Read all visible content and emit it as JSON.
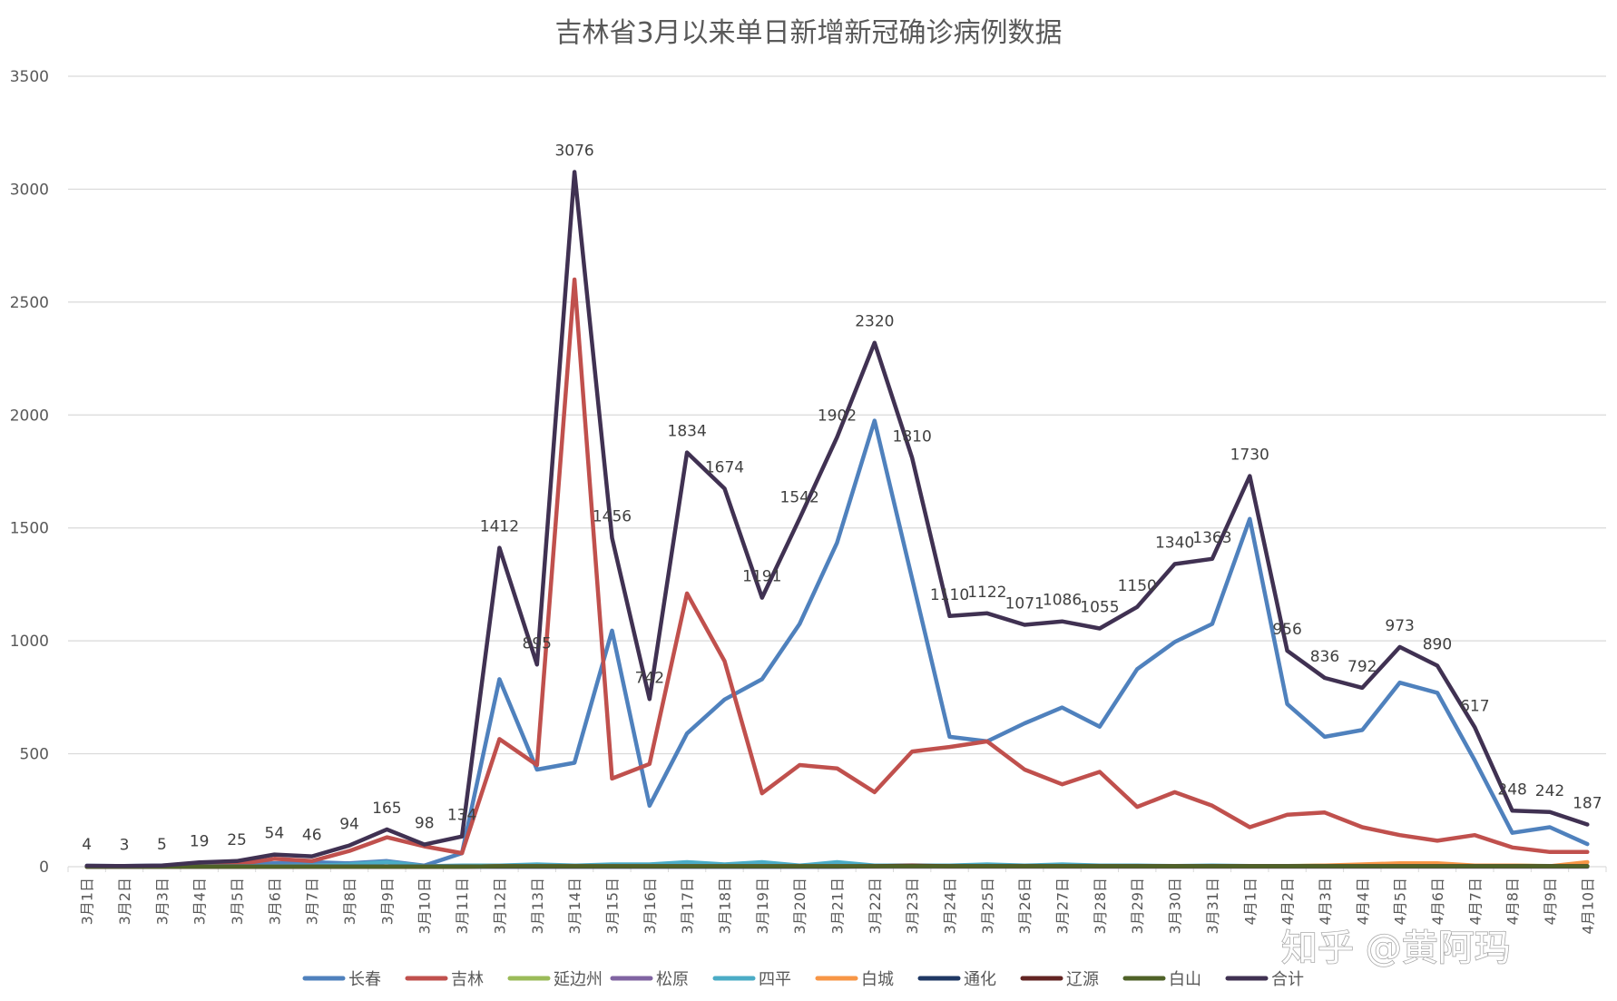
{
  "watermark": "知乎 @黄阿玛",
  "chart_data": {
    "type": "line",
    "title": "吉林省3月以来单日新增新冠确诊病例数据",
    "xlabel": "",
    "ylabel": "",
    "ylim": [
      0,
      3500
    ],
    "yticks": [
      0,
      500,
      1000,
      1500,
      2000,
      2500,
      3000,
      3500
    ],
    "grid": true,
    "legend_position": "bottom",
    "categories": [
      "3月1日",
      "3月2日",
      "3月3日",
      "3月4日",
      "3月5日",
      "3月6日",
      "3月7日",
      "3月8日",
      "3月9日",
      "3月10日",
      "3月11日",
      "3月12日",
      "3月13日",
      "3月14日",
      "3月15日",
      "3月16日",
      "3月17日",
      "3月18日",
      "3月19日",
      "3月20日",
      "3月21日",
      "3月22日",
      "3月23日",
      "3月24日",
      "3月25日",
      "3月26日",
      "3月27日",
      "3月28日",
      "3月29日",
      "3月30日",
      "3月31日",
      "4月1日",
      "4月2日",
      "4月3日",
      "4月4日",
      "4月5日",
      "4月6日",
      "4月7日",
      "4月8日",
      "4月9日",
      "4月10日"
    ],
    "series": [
      {
        "name": "长春",
        "color": "#4f81bd",
        "values": [
          4,
          3,
          5,
          10,
          12,
          15,
          20,
          15,
          25,
          5,
          60,
          830,
          430,
          460,
          1045,
          270,
          590,
          740,
          830,
          1075,
          1435,
          1975,
          1275,
          575,
          555,
          635,
          705,
          620,
          875,
          995,
          1075,
          1540,
          720,
          575,
          605,
          815,
          770,
          470,
          150,
          175,
          100
        ]
      },
      {
        "name": "吉林",
        "color": "#c0504d",
        "values": [
          0,
          0,
          0,
          5,
          10,
          35,
          25,
          70,
          130,
          90,
          60,
          565,
          450,
          2600,
          390,
          455,
          1210,
          910,
          325,
          450,
          435,
          330,
          510,
          530,
          555,
          430,
          365,
          420,
          265,
          330,
          270,
          175,
          230,
          240,
          175,
          140,
          115,
          140,
          85,
          65,
          65
        ]
      },
      {
        "name": "延边州",
        "color": "#9bbb59",
        "values": [
          0,
          0,
          0,
          0,
          0,
          0,
          0,
          0,
          0,
          0,
          0,
          5,
          2,
          2,
          2,
          3,
          2,
          2,
          2,
          2,
          2,
          5,
          5,
          2,
          2,
          2,
          2,
          2,
          3,
          3,
          3,
          2,
          3,
          5,
          5,
          5,
          5,
          3,
          5,
          3,
          3
        ]
      },
      {
        "name": "松原",
        "color": "#8064a2",
        "values": [
          0,
          0,
          0,
          0,
          0,
          0,
          0,
          0,
          0,
          0,
          0,
          0,
          0,
          0,
          0,
          0,
          0,
          0,
          0,
          0,
          0,
          0,
          0,
          0,
          0,
          0,
          0,
          0,
          0,
          0,
          0,
          0,
          0,
          0,
          0,
          0,
          0,
          0,
          0,
          0,
          0
        ]
      },
      {
        "name": "四平",
        "color": "#4bacc6",
        "values": [
          0,
          0,
          0,
          2,
          2,
          3,
          5,
          10,
          20,
          2,
          5,
          5,
          10,
          5,
          10,
          10,
          20,
          10,
          20,
          5,
          20,
          5,
          5,
          5,
          10,
          5,
          10,
          5,
          5,
          3,
          5,
          3,
          3,
          3,
          3,
          3,
          3,
          3,
          3,
          2,
          2
        ]
      },
      {
        "name": "白城",
        "color": "#f79646",
        "values": [
          0,
          0,
          0,
          0,
          0,
          0,
          0,
          0,
          0,
          0,
          0,
          2,
          2,
          2,
          2,
          2,
          2,
          2,
          2,
          2,
          2,
          2,
          2,
          2,
          2,
          2,
          2,
          2,
          2,
          2,
          2,
          2,
          2,
          5,
          10,
          15,
          15,
          5,
          5,
          2,
          20
        ]
      },
      {
        "name": "通化",
        "color": "#1f3864",
        "values": [
          0,
          0,
          0,
          0,
          0,
          0,
          0,
          0,
          0,
          0,
          0,
          0,
          0,
          0,
          0,
          0,
          0,
          0,
          0,
          0,
          0,
          2,
          2,
          2,
          2,
          2,
          2,
          2,
          2,
          2,
          2,
          2,
          2,
          2,
          2,
          2,
          2,
          2,
          2,
          2,
          2
        ]
      },
      {
        "name": "辽源",
        "color": "#632523",
        "values": [
          0,
          0,
          0,
          0,
          0,
          0,
          0,
          0,
          0,
          0,
          0,
          2,
          2,
          2,
          2,
          2,
          2,
          2,
          2,
          2,
          2,
          2,
          5,
          2,
          2,
          2,
          2,
          2,
          2,
          2,
          2,
          2,
          2,
          2,
          2,
          2,
          2,
          2,
          2,
          2,
          2
        ]
      },
      {
        "name": "白山",
        "color": "#4f6228",
        "values": [
          0,
          0,
          0,
          0,
          0,
          0,
          0,
          0,
          0,
          0,
          0,
          2,
          2,
          2,
          2,
          2,
          2,
          2,
          2,
          2,
          2,
          2,
          2,
          2,
          2,
          2,
          2,
          2,
          2,
          2,
          2,
          2,
          2,
          2,
          2,
          2,
          2,
          2,
          2,
          2,
          2
        ]
      },
      {
        "name": "合计",
        "color": "#403152",
        "values": [
          4,
          3,
          5,
          19,
          25,
          54,
          46,
          94,
          165,
          98,
          134,
          1412,
          895,
          3076,
          1456,
          742,
          1834,
          1674,
          1191,
          1542,
          1902,
          2320,
          1810,
          1110,
          1122,
          1071,
          1086,
          1055,
          1150,
          1340,
          1363,
          1730,
          956,
          836,
          792,
          973,
          890,
          617,
          248,
          242,
          187
        ],
        "labels": true
      }
    ]
  }
}
